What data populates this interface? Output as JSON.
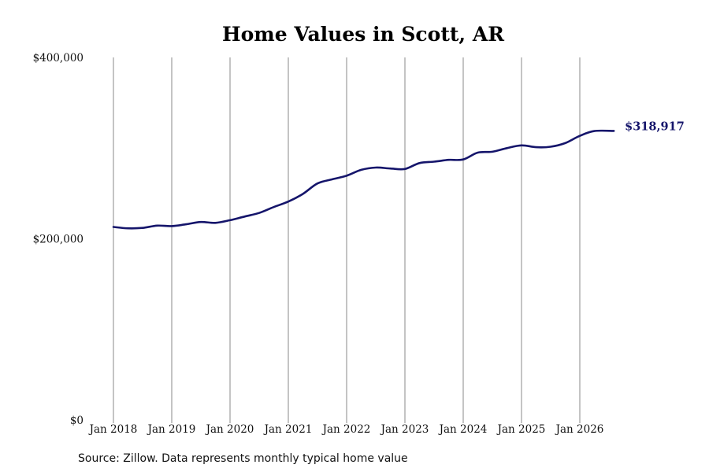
{
  "chart_data": {
    "type": "line",
    "title": "Home Values in Scott, AR",
    "xlabel": "",
    "ylabel": "",
    "x_ticks": [
      "Jan 2018",
      "Jan 2019",
      "Jan 2020",
      "Jan 2021",
      "Jan 2022",
      "Jan 2023",
      "Jan 2024",
      "Jan 2025",
      "Jan 2026"
    ],
    "y_ticks": [
      "$0",
      "$200,000",
      "$400,000"
    ],
    "ylim": [
      0,
      400000
    ],
    "xlim": [
      "2018-01",
      "2026-08"
    ],
    "grid": "vertical",
    "line_color": "#15156b",
    "end_label": "$318,917",
    "series": [
      {
        "x": [
          "2018-01",
          "2018-04",
          "2018-07",
          "2018-10",
          "2019-01",
          "2019-04",
          "2019-07",
          "2019-10",
          "2020-01",
          "2020-04",
          "2020-07",
          "2020-10",
          "2021-01",
          "2021-04",
          "2021-07",
          "2021-10",
          "2022-01",
          "2022-04",
          "2022-07",
          "2022-10",
          "2023-01",
          "2023-04",
          "2023-07",
          "2023-10",
          "2024-01",
          "2024-04",
          "2024-07",
          "2024-10",
          "2025-01",
          "2025-04",
          "2025-07",
          "2025-10",
          "2026-01",
          "2026-04",
          "2026-08"
        ],
        "values": [
          213000,
          211500,
          212000,
          214500,
          214000,
          216000,
          218500,
          217500,
          220500,
          224500,
          228500,
          235000,
          241000,
          249500,
          261000,
          265500,
          269500,
          276000,
          278500,
          277500,
          277000,
          283500,
          285000,
          287000,
          287500,
          295000,
          296000,
          300000,
          303000,
          301000,
          301500,
          305500,
          313500,
          318800,
          318917
        ]
      }
    ]
  },
  "source": "Source: Zillow. Data represents monthly typical home value"
}
